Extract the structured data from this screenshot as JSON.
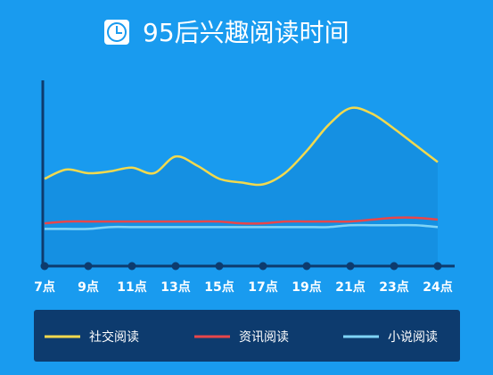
{
  "chart_data": {
    "type": "line",
    "title": "95后兴趣阅读时间",
    "categories": [
      "7点",
      null,
      "9点",
      null,
      "11点",
      null,
      "13点",
      null,
      "15点",
      null,
      "17点",
      null,
      "19点",
      null,
      "21点",
      null,
      "23点",
      null,
      "24点"
    ],
    "series": [
      {
        "name": "社交阅读",
        "color": "#f2d94e",
        "values": [
          47,
          52,
          50,
          51,
          53,
          50,
          59,
          54,
          47,
          45,
          44,
          50,
          62,
          76,
          85,
          82,
          74,
          65,
          56
        ]
      },
      {
        "name": "资讯阅读",
        "color": "#e8464a",
        "values": [
          23,
          24,
          24,
          24,
          24,
          24,
          24,
          24,
          24,
          23,
          23,
          24,
          24,
          24,
          24,
          25,
          26,
          26,
          25
        ]
      },
      {
        "name": "小说阅读",
        "color": "#7fd4f7",
        "values": [
          20,
          20,
          20,
          21,
          21,
          21,
          21,
          21,
          21,
          21,
          21,
          21,
          21,
          21,
          22,
          22,
          22,
          22,
          21
        ]
      }
    ],
    "ylim": [
      0,
      100
    ],
    "area_fill": "#1590e2"
  }
}
